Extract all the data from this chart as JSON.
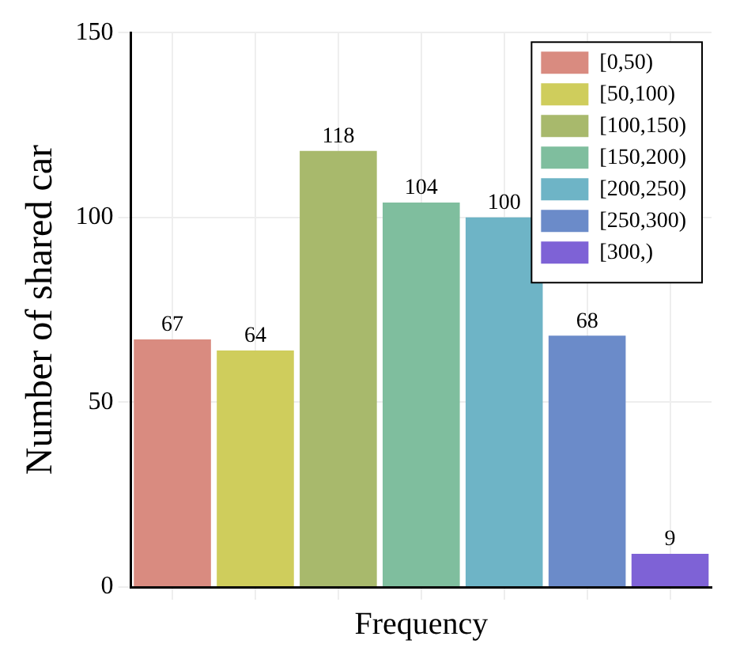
{
  "chart_data": {
    "type": "bar",
    "xlabel": "Frequency",
    "ylabel": "Number of shared car",
    "categories": [
      null,
      null,
      null,
      null,
      null,
      null,
      null
    ],
    "series": [
      {
        "name": "[0,50)",
        "color": "#d98b80",
        "values": [
          67,
          null,
          null,
          null,
          null,
          null,
          null
        ]
      },
      {
        "name": "[50,100)",
        "color": "#cfcd5c",
        "values": [
          null,
          64,
          null,
          null,
          null,
          null,
          null
        ]
      },
      {
        "name": "[100,150)",
        "color": "#a8b96c",
        "values": [
          null,
          null,
          118,
          null,
          null,
          null,
          null
        ]
      },
      {
        "name": "[150,200)",
        "color": "#7fbe9e",
        "values": [
          null,
          null,
          null,
          104,
          null,
          null,
          null
        ]
      },
      {
        "name": "[200,250)",
        "color": "#6eb4c6",
        "values": [
          null,
          null,
          null,
          null,
          100,
          null,
          null
        ]
      },
      {
        "name": "[250,300)",
        "color": "#6b8bc9",
        "values": [
          null,
          null,
          null,
          null,
          null,
          68,
          null
        ]
      },
      {
        "name": "[300,)",
        "color": "#7e62d6",
        "values": [
          null,
          null,
          null,
          null,
          null,
          null,
          9
        ]
      }
    ],
    "ylim": [
      0,
      150
    ],
    "yticks": [
      0,
      50,
      100,
      150
    ],
    "grid": true,
    "legend": "top right",
    "data_labels": true,
    "tick_labels": "y"
  }
}
